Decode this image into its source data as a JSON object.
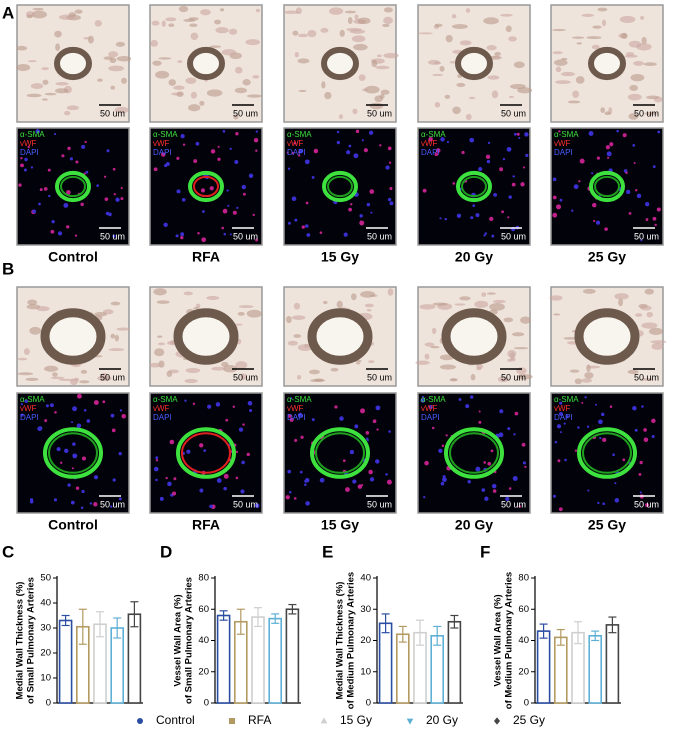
{
  "image_panels": [
    {
      "letter": "A",
      "labels": [
        "Control",
        "RFA",
        "15 Gy",
        "20 Gy",
        "25 Gy"
      ],
      "scale_bar": "50 um",
      "stain_labels": [
        "α-SMA",
        "vWF",
        "DAPI"
      ]
    },
    {
      "letter": "B",
      "labels": [
        "Control",
        "RFA",
        "15 Gy",
        "20 Gy",
        "25 Gy"
      ],
      "scale_bar": "50 um",
      "stain_labels": [
        "α-SMA",
        "vWF",
        "DAPI"
      ]
    }
  ],
  "groups": [
    {
      "name": "Control",
      "color": "#2b4ea2",
      "marker": "circle"
    },
    {
      "name": "RFA",
      "color": "#b39a60",
      "marker": "square"
    },
    {
      "name": "15 Gy",
      "color": "#cfcfcf",
      "marker": "triangle"
    },
    {
      "name": "20 Gy",
      "color": "#5fb0d6",
      "marker": "triangle-down"
    },
    {
      "name": "25 Gy",
      "color": "#444444",
      "marker": "diamond"
    }
  ],
  "chart_data": [
    {
      "type": "bar",
      "panel": "C",
      "y_label": [
        "Medial Wall Thickness (%)",
        "of Small Pulmonary Arteries"
      ],
      "values": [
        33,
        30.5,
        31.5,
        30,
        35.5
      ],
      "errors": [
        2,
        7,
        5,
        4,
        5
      ],
      "ylim": [
        0,
        50
      ],
      "yticks": [
        0,
        10,
        20,
        30,
        40,
        50
      ]
    },
    {
      "type": "bar",
      "panel": "D",
      "y_label": [
        "Vessel Wall Area (%)",
        "of Small Pulmonary Arteries"
      ],
      "values": [
        56,
        52,
        55,
        54,
        60
      ],
      "errors": [
        3,
        8,
        6,
        3,
        3
      ],
      "ylim": [
        0,
        80
      ],
      "yticks": [
        0,
        20,
        40,
        60,
        80
      ]
    },
    {
      "type": "bar",
      "panel": "E",
      "y_label": [
        "Medial Wall Thickness (%)",
        "of Medium Pulmonary Arteries"
      ],
      "values": [
        25.5,
        22,
        22.5,
        21.5,
        26
      ],
      "errors": [
        3,
        2.5,
        4,
        3,
        2
      ],
      "ylim": [
        0,
        40
      ],
      "yticks": [
        0,
        10,
        20,
        30,
        40
      ]
    },
    {
      "type": "bar",
      "panel": "F",
      "y_label": [
        "Vessel Wall Area (%)",
        "of Medium Pulmonary Arteries"
      ],
      "values": [
        46,
        42,
        45,
        43,
        50
      ],
      "errors": [
        4.5,
        5,
        7,
        3,
        5
      ],
      "ylim": [
        0,
        80
      ],
      "yticks": [
        0,
        20,
        40,
        60,
        80
      ]
    }
  ]
}
